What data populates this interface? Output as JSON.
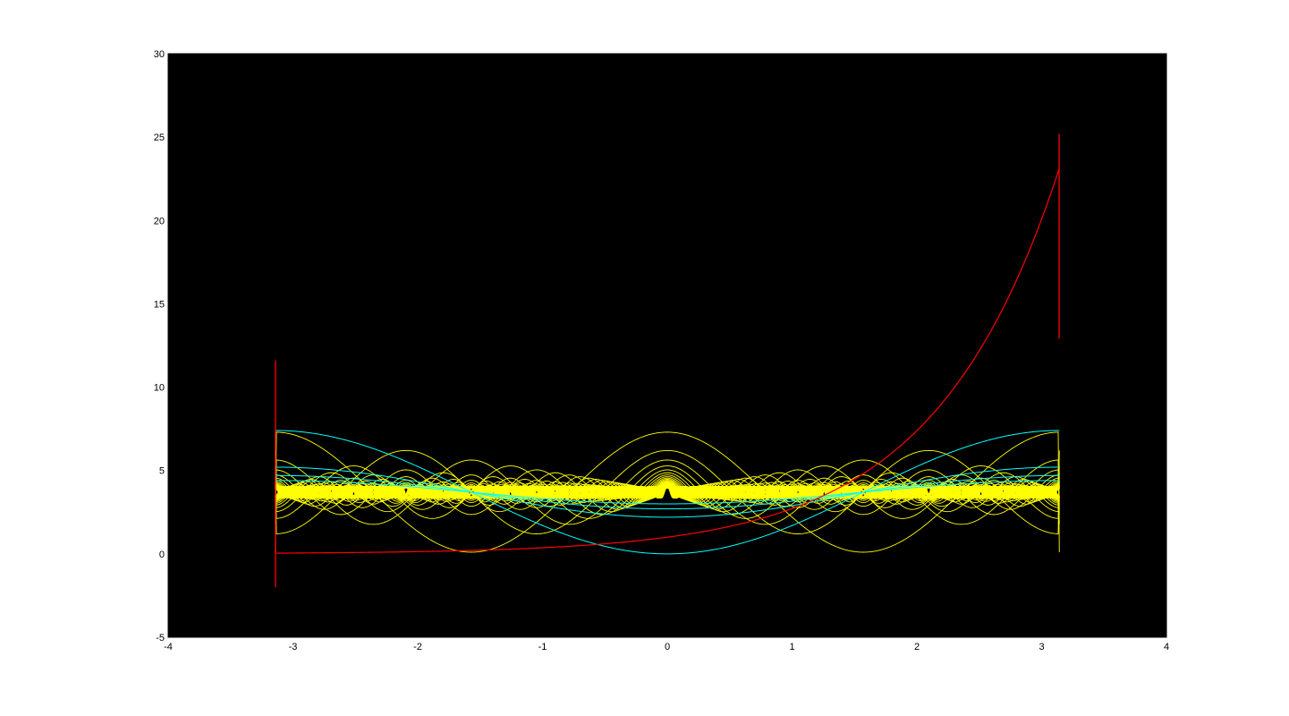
{
  "chart_data": {
    "type": "line",
    "title": "",
    "xlabel": "",
    "ylabel": "",
    "xlim": [
      -4,
      4
    ],
    "ylim": [
      -5,
      30
    ],
    "xticks": [
      -4,
      -3,
      -2,
      -1,
      0,
      1,
      2,
      3,
      4
    ],
    "yticks": [
      -5,
      0,
      5,
      10,
      15,
      20,
      25,
      30
    ],
    "grid": false,
    "plot_background": "#000000",
    "figure_background": "#ffffff",
    "domain": [
      -3.1416,
      3.1416
    ],
    "series": [
      {
        "color": "#ffff00",
        "kind": "fourier partial sums of |x| family (dense bundle of cosine curves)",
        "center_y": 3.7,
        "max_amplitude": 3.6,
        "modes": 40
      },
      {
        "color": "#00ffff",
        "kind": "cosine curves",
        "curves": [
          {
            "amplitude": 3.7,
            "period_factor": 1
          },
          {
            "amplitude": 1.5,
            "period_factor": 1
          },
          {
            "amplitude": 1.0,
            "period_factor": 1
          },
          {
            "amplitude": 0.7,
            "period_factor": 1
          }
        ],
        "center_y": 3.7
      },
      {
        "color": "#ff0000",
        "kind": "exponential fit with endpoint oscillation",
        "x": [
          -3.14,
          -3.0,
          -2.0,
          -1.0,
          0.0,
          1.0,
          1.5,
          2.0,
          2.5,
          3.0,
          3.14
        ],
        "y": [
          0.05,
          0.05,
          0.14,
          0.37,
          1.0,
          2.7,
          4.5,
          7.4,
          12.2,
          20.1,
          23.1
        ],
        "spikes": [
          {
            "x": -3.14,
            "y_min": -2.0,
            "y_max": 11.6
          },
          {
            "x": 3.14,
            "y_min": 12.9,
            "y_max": 25.2
          }
        ]
      }
    ]
  }
}
